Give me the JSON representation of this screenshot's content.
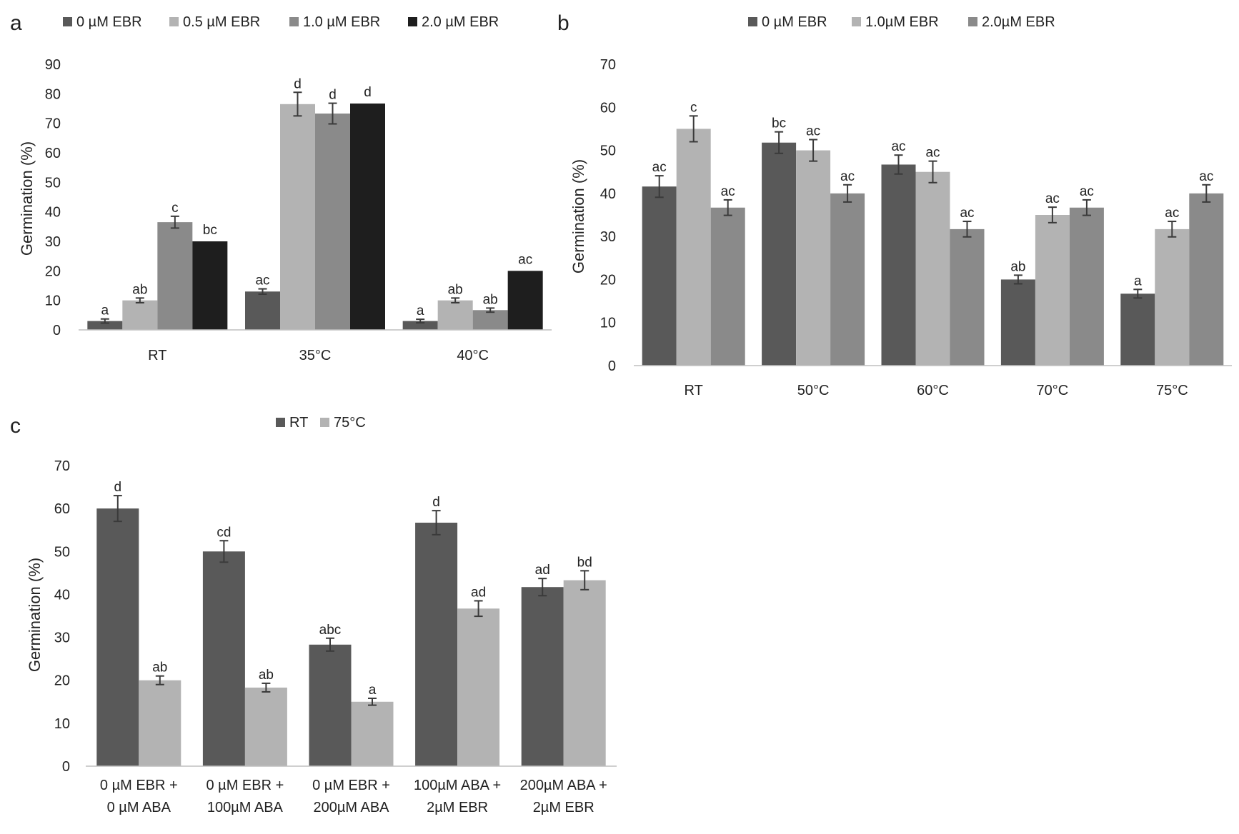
{
  "chart_data": [
    {
      "type": "bar",
      "panel": "a",
      "categories": [
        "RT",
        "35°C",
        "40°C"
      ],
      "ylabel": "Germination (%)",
      "ylim": [
        0,
        90
      ],
      "yticks": [
        "0",
        "10",
        "20",
        "30",
        "40",
        "50",
        "60",
        "70",
        "80",
        "90"
      ],
      "legend_position": "top",
      "series": [
        {
          "name": "0 µM EBR",
          "color": "#595959",
          "values": [
            3,
            13,
            3
          ],
          "errors": [
            0.7,
            0.9,
            0.6
          ],
          "labels": [
            "a",
            "ac",
            "a"
          ]
        },
        {
          "name": "0.5 µM EBR",
          "color": "#b3b3b3",
          "values": [
            10,
            76.5,
            10
          ],
          "errors": [
            0.8,
            4,
            0.8
          ],
          "labels": [
            "ab",
            "d",
            "ab"
          ]
        },
        {
          "name": "1.0 µM EBR",
          "color": "#8a8a8a",
          "values": [
            36.5,
            73.3,
            6.7
          ],
          "errors": [
            2,
            3.5,
            0.7
          ],
          "labels": [
            "c",
            "d",
            "ab"
          ]
        },
        {
          "name": "2.0 µM EBR",
          "color": "#1e1e1e",
          "values": [
            30,
            76.7,
            20
          ],
          "errors": [
            0,
            0,
            0
          ],
          "labels": [
            "bc",
            "d",
            "ac"
          ]
        }
      ]
    },
    {
      "type": "bar",
      "panel": "b",
      "categories": [
        "RT",
        "50°C",
        "60°C",
        "70°C",
        "75°C"
      ],
      "ylabel": "Germination (%)",
      "ylim": [
        0,
        70
      ],
      "yticks": [
        "0",
        "10",
        "20",
        "30",
        "40",
        "50",
        "60",
        "70"
      ],
      "legend_position": "top",
      "series": [
        {
          "name": "0 µM EBR",
          "color": "#595959",
          "values": [
            41.6,
            51.8,
            46.7,
            20,
            16.7
          ],
          "errors": [
            2.5,
            2.5,
            2.2,
            1,
            1
          ],
          "labels": [
            "ac",
            "bc",
            "ac",
            "ab",
            "a"
          ]
        },
        {
          "name": "1.0µM EBR",
          "color": "#b3b3b3",
          "values": [
            55,
            50,
            45,
            35,
            31.7
          ],
          "errors": [
            3,
            2.5,
            2.5,
            1.8,
            1.8
          ],
          "labels": [
            "c",
            "ac",
            "ac",
            "ac",
            "ac"
          ]
        },
        {
          "name": "2.0µM EBR",
          "color": "#8a8a8a",
          "values": [
            36.7,
            40,
            31.7,
            36.7,
            40
          ],
          "errors": [
            1.8,
            2,
            1.8,
            1.8,
            2
          ],
          "labels": [
            "ac",
            "ac",
            "ac",
            "ac",
            "ac"
          ]
        }
      ]
    },
    {
      "type": "bar",
      "panel": "c",
      "categories": [
        "0 µM EBR + 0 µM ABA",
        "0 µM EBR + 100µM ABA",
        "0 µM EBR + 200µM ABA",
        "100µM ABA + 2µM EBR",
        "200µM ABA + 2µM EBR"
      ],
      "category_lines": [
        [
          "0 µM EBR +",
          "0 µM ABA"
        ],
        [
          "0 µM EBR +",
          "100µM ABA"
        ],
        [
          "0 µM EBR +",
          "200µM ABA"
        ],
        [
          "100µM ABA +",
          "2µM EBR"
        ],
        [
          "200µM ABA +",
          "2µM EBR"
        ]
      ],
      "ylabel": "Germination (%)",
      "ylim": [
        0,
        70
      ],
      "yticks": [
        "0",
        "10",
        "20",
        "30",
        "40",
        "50",
        "60",
        "70"
      ],
      "legend_position": "top",
      "series": [
        {
          "name": "RT",
          "color": "#595959",
          "values": [
            60,
            50,
            28.3,
            56.7,
            41.7
          ],
          "errors": [
            3,
            2.5,
            1.5,
            2.8,
            2
          ],
          "labels": [
            "d",
            "cd",
            "abc",
            "d",
            "ad"
          ]
        },
        {
          "name": "75°C",
          "color": "#b3b3b3",
          "values": [
            20,
            18.3,
            15,
            36.7,
            43.3
          ],
          "errors": [
            1,
            1,
            0.8,
            1.8,
            2.2
          ],
          "labels": [
            "ab",
            "ab",
            "a",
            "ad",
            "bd"
          ]
        }
      ]
    }
  ]
}
